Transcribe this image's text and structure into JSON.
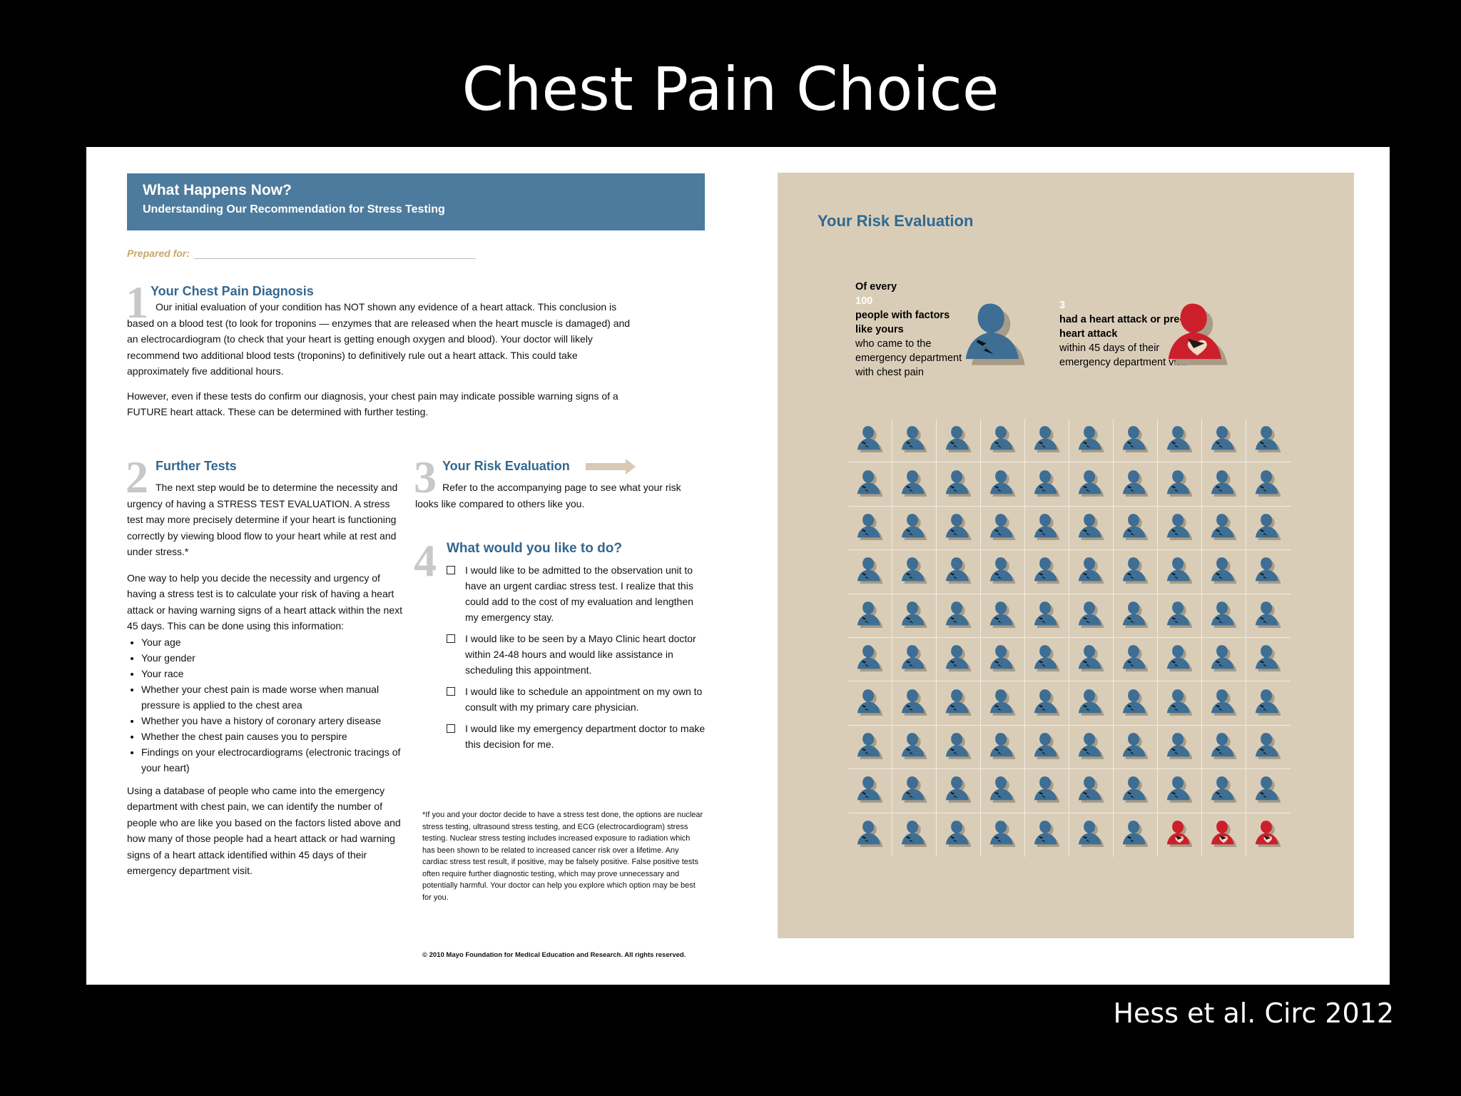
{
  "slide": {
    "title": "Chest Pain Choice",
    "credit": "Hess et al. Circ 2012"
  },
  "header": {
    "title": "What Happens Now?",
    "subtitle": "Understanding Our Recommendation for Stress Testing",
    "prepared_for": "Prepared for:"
  },
  "section1": {
    "number": "1",
    "title": "Your Chest Pain Diagnosis",
    "p1": "Our initial evaluation of your condition has NOT shown any evidence of a heart attack. This conclusion is based on a blood test (to look for troponins — enzymes that are released when the heart muscle is damaged) and an electrocardiogram (to check that your heart is getting enough oxygen and blood). Your doctor will likely recommend two additional blood tests (troponins) to definitively rule out a heart attack. This could take approximately five additional hours.",
    "p2": "However, even if these tests do confirm our diagnosis, your chest pain may indicate possible warning signs of a FUTURE heart attack. These can be determined with further testing."
  },
  "section2": {
    "number": "2",
    "title": "Further Tests",
    "p1": "The next step would be to determine the necessity and urgency of having a STRESS TEST EVALUATION. A stress test may more precisely determine if your heart is functioning correctly by viewing blood flow to your heart while at rest and under stress.*",
    "p2": "One way to help you decide the necessity and urgency of having a stress test is to calculate your risk of having a heart attack or having warning signs of a heart attack within the next 45 days. This can be done using this information:",
    "bullets": [
      "Your age",
      "Your gender",
      "Your race",
      "Whether your chest pain is made worse when manual pressure is applied to the chest area",
      "Whether you have a history of coronary artery disease",
      "Whether the chest pain causes you to perspire",
      "Findings on your electrocardiograms (electronic tracings of your heart)"
    ],
    "p3": "Using a database of people who came into the emergency department with chest pain, we can identify the number of people who are like you based on the factors listed above and how many of those people had a heart attack or had warning signs of a heart attack identified within 45 days of their emergency department visit."
  },
  "section3": {
    "number": "3",
    "title": "Your Risk Evaluation",
    "p1": "Refer to the accompanying page to see what your risk looks like compared to others like you."
  },
  "section4": {
    "number": "4",
    "title": "What would you like to do?",
    "options": [
      "I would like to be admitted to the observation unit to have an urgent cardiac stress test. I realize that this could add to the cost of my evaluation and lengthen my emergency stay.",
      "I would like to be seen by a Mayo Clinic heart doctor within 24-48 hours and would like assistance in scheduling this appointment.",
      "I would like to schedule an appointment on my own to consult with my primary care physician.",
      "I would like my emergency department doctor to make this decision for me."
    ]
  },
  "footnote": "*If you and your doctor decide to have a stress test done, the options are nuclear stress testing, ultrasound stress testing, and ECG (electrocardiogram) stress testing. Nuclear stress testing includes increased exposure to radiation which has been shown to be related to increased cancer risk over a lifetime. Any cardiac stress test result, if positive, may be falsely positive. False positive tests often require further diagnostic testing, which may prove unnecessary and potentially harmful. Your doctor can help you explore which option may be best for you.",
  "copyright": "© 2010 Mayo Foundation for Medical Education and Research. All rights reserved.",
  "risk": {
    "title": "Your Risk Evaluation",
    "of_every": "Of every",
    "total": "100",
    "people_line": "people with factors like yours",
    "context": "who came to the emergency department with chest pain",
    "events": "3",
    "event_text": "had a heart attack or pre-heart attack",
    "event_context": "within 45 days of their emergency department visit",
    "grid_total": 100,
    "grid_events": 3,
    "colors": {
      "unaffected": "#3e6e93",
      "affected": "#cc1f2c",
      "panel": "#dacdb8"
    },
    "icons": {
      "unaffected": "person-icon",
      "affected": "person-heart-icon"
    }
  }
}
